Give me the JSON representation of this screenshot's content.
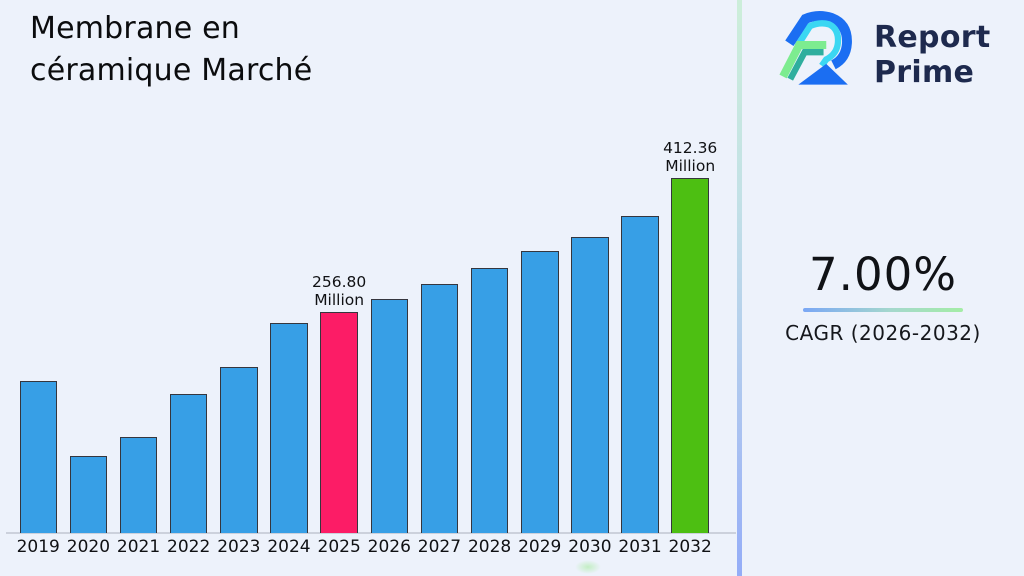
{
  "page": {
    "background": "#edf2fb"
  },
  "header": {
    "title_line1": "Membrane en",
    "title_line2": "céramique Marché"
  },
  "brand": {
    "name_line1": "Report",
    "name_line2": "Prime",
    "logo_icon": "report-prime-logo",
    "text_color": "#1e2a4e",
    "logo_colors": {
      "blue": "#1b6ef2",
      "cyan": "#3bd7f2",
      "green": "#7dec90",
      "teal": "#2fae9e"
    }
  },
  "kpi": {
    "value": "7.00%",
    "label": "CAGR (2026-2032)"
  },
  "chart_data": {
    "type": "bar",
    "title": "Membrane en céramique Marché",
    "unit": "Million",
    "categories": [
      "2019",
      "2020",
      "2021",
      "2022",
      "2023",
      "2024",
      "2025",
      "2026",
      "2027",
      "2028",
      "2029",
      "2030",
      "2031",
      "2032"
    ],
    "values": [
      176,
      90,
      111,
      161,
      193,
      244,
      256.8,
      272,
      289,
      308,
      327,
      344,
      368,
      412.36
    ],
    "bar_color_default": "#379fe6",
    "bar_border_color": "#35363e",
    "highlights": {
      "2025": "#fc1c66",
      "2032": "#4dbf12"
    },
    "annotations": [
      {
        "category": "2025",
        "value_text": "256.80",
        "unit_text": "Million"
      },
      {
        "category": "2032",
        "value_text": "412.36",
        "unit_text": "Million"
      }
    ],
    "xlabel": "",
    "ylabel": "",
    "ylim": [
      0,
      430
    ],
    "grid": false,
    "legend": false,
    "axis_labels_visible": "x-only"
  }
}
